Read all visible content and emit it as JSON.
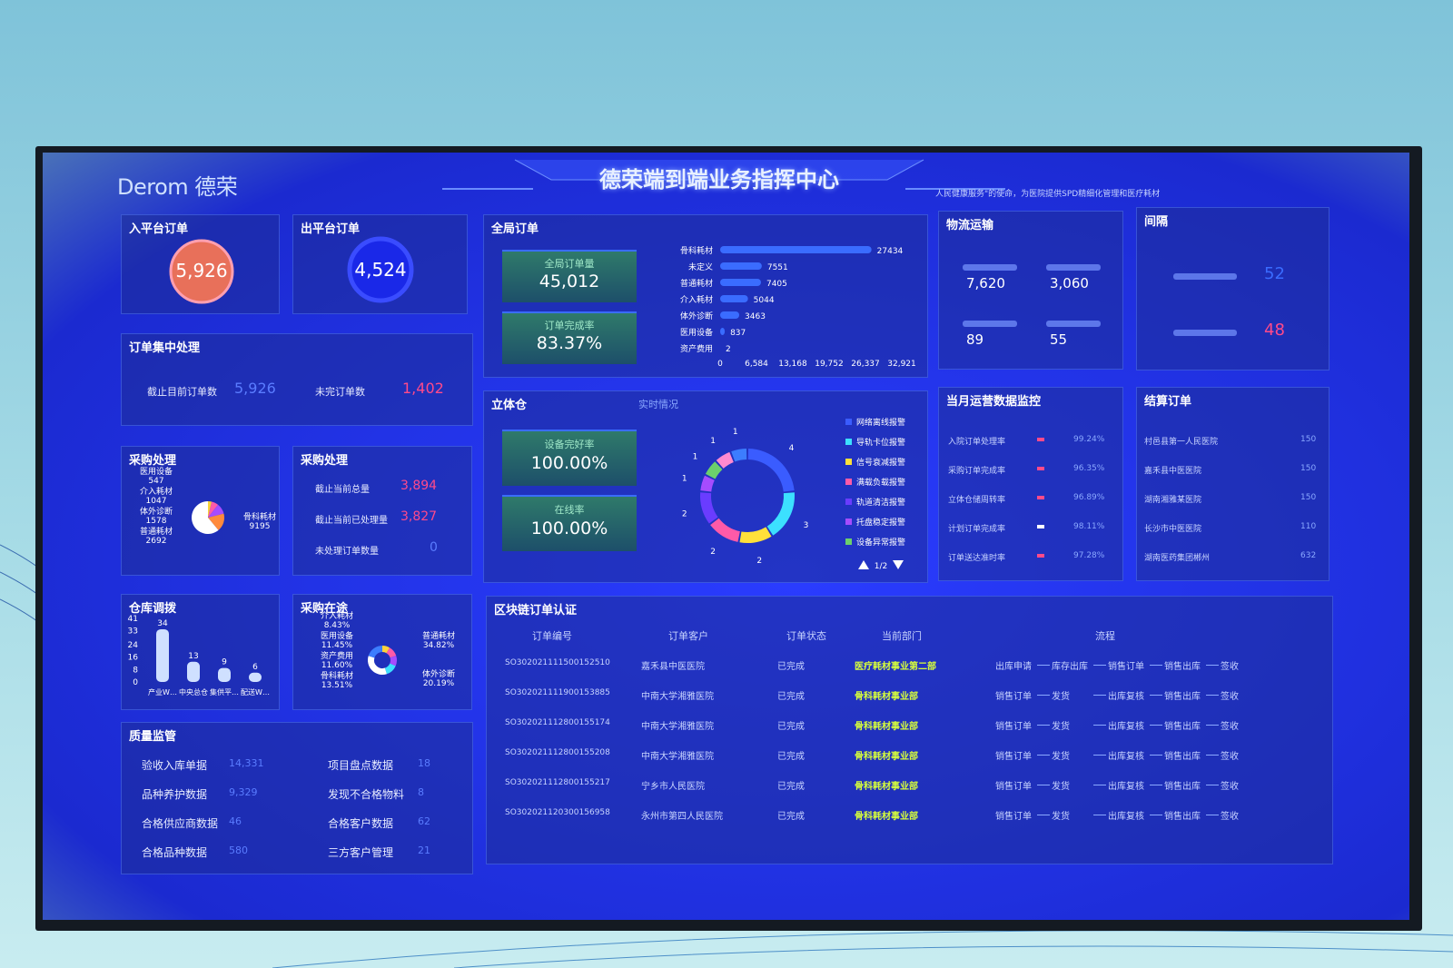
{
  "header": {
    "logo": "Derom 德荣",
    "title": "德荣端到端业务指挥中心",
    "ticker": "人民健康服务\"的使命，为医院提供SPD精细化管理和医疗耗材"
  },
  "inbound": {
    "title": "入平台订单",
    "value": "5,926"
  },
  "outbound": {
    "title": "出平台订单",
    "value": "4,524"
  },
  "central": {
    "title": "订单集中处理",
    "items": [
      {
        "label": "截止目前订单数",
        "value": "5,926"
      },
      {
        "label": "未完订单数",
        "value": "1,402"
      }
    ]
  },
  "purchase_pie": {
    "title": "采购处理",
    "slices": [
      {
        "name": "医用设备",
        "value": 547,
        "color": "#f6d33a"
      },
      {
        "name": "介入耗材",
        "value": 1047,
        "color": "#ff5aa8"
      },
      {
        "name": "体外诊断",
        "value": 1578,
        "color": "#a64cff"
      },
      {
        "name": "普通耗材",
        "value": 2692,
        "color": "#ff8a3c"
      },
      {
        "name": "骨科耗材",
        "value": 9195,
        "color": "#ffffff"
      }
    ]
  },
  "purchase_status": {
    "title": "采购处理",
    "items": [
      {
        "label": "截止当前总量",
        "value": "3,894"
      },
      {
        "label": "截止当前已处理量",
        "value": "3,827"
      },
      {
        "label": "未处理订单数量",
        "value": "0"
      }
    ]
  },
  "warehouse": {
    "title": "仓库调拨",
    "categories": [
      "产业W…",
      "中央总仓",
      "集供平…",
      "配送W…"
    ],
    "values": [
      34,
      13,
      9,
      6
    ],
    "ylim": [
      0,
      41
    ],
    "yticks": [
      0,
      8,
      16,
      24,
      33,
      41
    ]
  },
  "transit": {
    "title": "采购在途",
    "slices": [
      {
        "name": "介入耗材",
        "value": 8.43,
        "label": "8.43%",
        "color": "#ffd23a"
      },
      {
        "name": "医用设备",
        "value": 11.45,
        "label": "11.45%",
        "color": "#ff5aa8"
      },
      {
        "name": "资产费用",
        "value": 11.6,
        "label": "11.60%",
        "color": "#a64cff"
      },
      {
        "name": "骨科耗材",
        "value": 13.51,
        "label": "13.51%",
        "color": "#3ce0ff"
      },
      {
        "name": "普通耗材",
        "value": 34.82,
        "label": "34.82%",
        "color": "#ffffff"
      },
      {
        "name": "体外诊断",
        "value": 20.19,
        "label": "20.19%",
        "color": "#3c7dff"
      }
    ]
  },
  "quality": {
    "title": "质量监管",
    "items": [
      {
        "label": "验收入库单据",
        "value": "14,331"
      },
      {
        "label": "品种养护数据",
        "value": "9,329"
      },
      {
        "label": "合格供应商数据",
        "value": "46"
      },
      {
        "label": "合格品种数据",
        "value": "580"
      },
      {
        "label": "项目盘点数据",
        "value": "18"
      },
      {
        "label": "发现不合格物料",
        "value": "8"
      },
      {
        "label": "合格客户数据",
        "value": "62"
      },
      {
        "label": "三方客户管理",
        "value": "21"
      }
    ]
  },
  "global": {
    "title": "全局订单",
    "kpis": [
      {
        "label": "全局订单量",
        "value": "45,012"
      },
      {
        "label": "订单完成率",
        "value": "83.37%"
      }
    ],
    "bars": {
      "categories": [
        "骨科耗材",
        "未定义",
        "普通耗材",
        "介入耗材",
        "体外诊断",
        "医用设备",
        "资产费用"
      ],
      "values": [
        27434,
        7551,
        7405,
        5044,
        3463,
        837,
        2
      ],
      "xlim": [
        0,
        32921
      ],
      "xticks": [
        0,
        {
          "value": 6584,
          "label": "6,584"
        },
        {
          "value": 13168,
          "label": "13,168"
        },
        {
          "value": 19752,
          "label": "19,752"
        },
        {
          "value": 26337,
          "label": "26,337"
        },
        {
          "value": 32921,
          "label": "32,921"
        }
      ]
    }
  },
  "logistics": {
    "title": "物流运输",
    "values": [
      "7,620",
      "3,060",
      "89",
      "55"
    ]
  },
  "interval": {
    "title": "间隔",
    "values": [
      "52",
      "48"
    ]
  },
  "stereo": {
    "title": "立体仓",
    "subtitle": "实时情况",
    "kpis": [
      {
        "label": "设备完好率",
        "value": "100.00%"
      },
      {
        "label": "在线率",
        "value": "100.00%"
      }
    ],
    "ring": {
      "values": [
        4,
        3,
        2,
        2,
        2,
        1,
        1,
        1,
        1
      ],
      "colors": [
        "#3a5cff",
        "#3ce0ff",
        "#ffe03a",
        "#ff5aa8",
        "#6a3cff",
        "#a64cff",
        "#6cd06c",
        "#ff8ad0",
        "#3c7dff"
      ]
    },
    "legend": [
      "网络离线报警",
      "导轨卡位报警",
      "信号衰减报警",
      "满载负载报警",
      "轨道清洁报警",
      "托盘稳定报警",
      "设备异常报警"
    ],
    "legend_colors": [
      "#3a5cff",
      "#3ce0ff",
      "#ffe03a",
      "#ff5aa8",
      "#6a3cff",
      "#a64cff",
      "#6cd06c"
    ],
    "pager": "1/2"
  },
  "monthly": {
    "title": "当月运营数据监控",
    "rows": [
      {
        "label": "入院订单处理率",
        "value": "99.24%"
      },
      {
        "label": "采购订单完成率",
        "value": "96.35%"
      },
      {
        "label": "立体仓储周转率",
        "value": "96.89%"
      },
      {
        "label": "计划订单完成率",
        "value": "98.11%"
      },
      {
        "label": "订单送达准时率",
        "value": "97.28%"
      }
    ]
  },
  "settlement": {
    "title": "结算订单",
    "rows": [
      {
        "label": "村邑县第一人民医院",
        "value": "150"
      },
      {
        "label": "嘉禾县中医医院",
        "value": "150"
      },
      {
        "label": "湖南湘雅某医院",
        "value": "150"
      },
      {
        "label": "长沙市中医医院",
        "value": "110"
      },
      {
        "label": "湖南医药集团郴州",
        "value": "632"
      }
    ]
  },
  "chain": {
    "title": "区块链订单认证",
    "columns": [
      "订单编号",
      "订单客户",
      "订单状态",
      "当前部门",
      "流程"
    ],
    "rows": [
      [
        "SO302021111500152510",
        "嘉禾县中医医院",
        "已完成",
        "医疗耗材事业第二部",
        [
          "出库申请",
          "库存出库",
          "销售订单",
          "销售出库",
          "签收"
        ]
      ],
      [
        "SO302021111900153885",
        "中南大学湘雅医院",
        "已完成",
        "骨科耗材事业部",
        [
          "销售订单",
          "发货",
          "出库复核",
          "销售出库",
          "签收"
        ]
      ],
      [
        "SO302021112800155174",
        "中南大学湘雅医院",
        "已完成",
        "骨科耗材事业部",
        [
          "销售订单",
          "发货",
          "出库复核",
          "销售出库",
          "签收"
        ]
      ],
      [
        "SO302021112800155208",
        "中南大学湘雅医院",
        "已完成",
        "骨科耗材事业部",
        [
          "销售订单",
          "发货",
          "出库复核",
          "销售出库",
          "签收"
        ]
      ],
      [
        "SO302021112800155217",
        "宁乡市人民医院",
        "已完成",
        "骨科耗材事业部",
        [
          "销售订单",
          "发货",
          "出库复核",
          "销售出库",
          "签收"
        ]
      ],
      [
        "SO302021120300156958",
        "永州市第四人民医院",
        "已完成",
        "骨科耗材事业部",
        [
          "销售订单",
          "发货",
          "出库复核",
          "销售出库",
          "签收"
        ]
      ]
    ]
  }
}
